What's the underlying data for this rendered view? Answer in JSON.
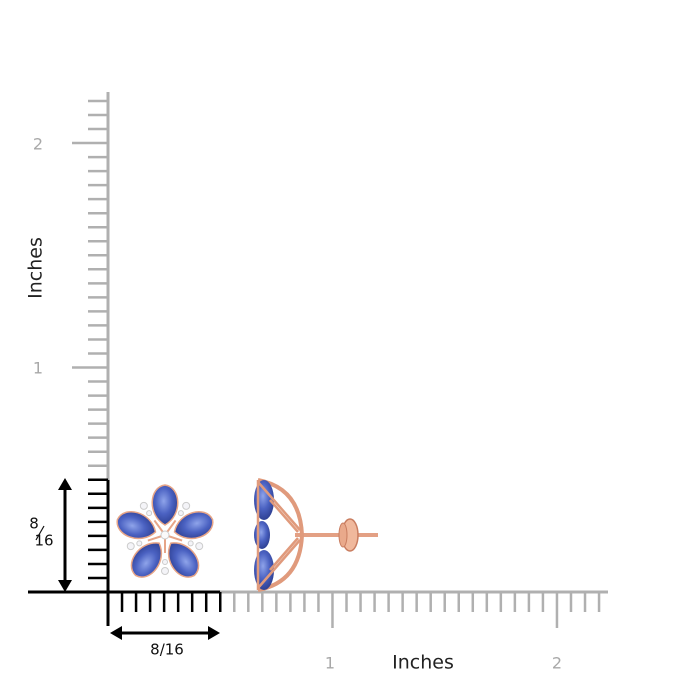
{
  "y_axis": {
    "title": "Inches",
    "labels": [
      "1",
      "2"
    ]
  },
  "x_axis": {
    "title": "Inches",
    "labels": [
      "1",
      "2"
    ]
  },
  "dimensions": {
    "width": "8/16",
    "height": {
      "numerator": "8",
      "denominator": "16"
    }
  }
}
